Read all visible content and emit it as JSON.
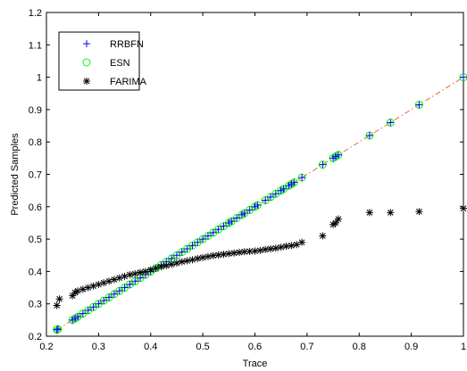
{
  "chart_data": {
    "type": "scatter",
    "title": "",
    "xlabel": "Trace",
    "ylabel": "Predicted Samples",
    "xlim": [
      0.2,
      1.0
    ],
    "ylim": [
      0.2,
      1.2
    ],
    "xticks": [
      "0.2",
      "0.3",
      "0.4",
      "0.5",
      "0.6",
      "0.7",
      "0.8",
      "0.9",
      "1"
    ],
    "yticks": [
      "0.2",
      "0.3",
      "0.4",
      "0.5",
      "0.6",
      "0.7",
      "0.8",
      "0.9",
      "1",
      "1.1",
      "1.2"
    ],
    "grid": false,
    "legend_position": "top-left",
    "reference_line": {
      "x": [
        0.22,
        1.0
      ],
      "y": [
        0.22,
        1.0
      ],
      "style": "dash-dot",
      "color": "#e8683a"
    },
    "series": [
      {
        "name": "RRBFN",
        "marker": "plus",
        "color": "#0000ff",
        "x": [
          0.22,
          0.222,
          0.25,
          0.255,
          0.26,
          0.27,
          0.28,
          0.29,
          0.3,
          0.31,
          0.32,
          0.33,
          0.34,
          0.35,
          0.36,
          0.37,
          0.38,
          0.39,
          0.4,
          0.41,
          0.42,
          0.43,
          0.44,
          0.45,
          0.46,
          0.47,
          0.48,
          0.49,
          0.5,
          0.51,
          0.52,
          0.53,
          0.54,
          0.55,
          0.555,
          0.565,
          0.575,
          0.58,
          0.59,
          0.6,
          0.605,
          0.62,
          0.63,
          0.64,
          0.65,
          0.655,
          0.665,
          0.67,
          0.675,
          0.69,
          0.73,
          0.75,
          0.755,
          0.76,
          0.82,
          0.86,
          0.915,
          1.0
        ],
        "y": [
          0.22,
          0.222,
          0.25,
          0.255,
          0.26,
          0.27,
          0.28,
          0.29,
          0.3,
          0.31,
          0.32,
          0.33,
          0.34,
          0.35,
          0.36,
          0.37,
          0.38,
          0.39,
          0.4,
          0.41,
          0.42,
          0.43,
          0.44,
          0.45,
          0.46,
          0.47,
          0.48,
          0.49,
          0.5,
          0.51,
          0.52,
          0.53,
          0.54,
          0.55,
          0.555,
          0.565,
          0.575,
          0.58,
          0.59,
          0.6,
          0.605,
          0.62,
          0.63,
          0.64,
          0.65,
          0.655,
          0.665,
          0.67,
          0.675,
          0.69,
          0.73,
          0.75,
          0.755,
          0.76,
          0.82,
          0.86,
          0.915,
          1.0
        ]
      },
      {
        "name": "ESN",
        "marker": "circle",
        "color": "#00ff00",
        "x": [
          0.22,
          0.222,
          0.25,
          0.255,
          0.26,
          0.27,
          0.28,
          0.29,
          0.3,
          0.31,
          0.32,
          0.33,
          0.34,
          0.35,
          0.36,
          0.37,
          0.38,
          0.39,
          0.4,
          0.41,
          0.42,
          0.43,
          0.44,
          0.45,
          0.46,
          0.47,
          0.48,
          0.49,
          0.5,
          0.51,
          0.52,
          0.53,
          0.54,
          0.55,
          0.555,
          0.565,
          0.575,
          0.58,
          0.59,
          0.6,
          0.605,
          0.62,
          0.63,
          0.64,
          0.65,
          0.655,
          0.665,
          0.67,
          0.675,
          0.69,
          0.73,
          0.75,
          0.755,
          0.76,
          0.82,
          0.86,
          0.915,
          1.0
        ],
        "y": [
          0.22,
          0.222,
          0.25,
          0.255,
          0.26,
          0.27,
          0.28,
          0.29,
          0.3,
          0.31,
          0.32,
          0.33,
          0.34,
          0.35,
          0.36,
          0.37,
          0.38,
          0.39,
          0.4,
          0.41,
          0.42,
          0.43,
          0.44,
          0.45,
          0.46,
          0.47,
          0.48,
          0.49,
          0.5,
          0.51,
          0.52,
          0.53,
          0.54,
          0.55,
          0.555,
          0.565,
          0.575,
          0.58,
          0.59,
          0.6,
          0.605,
          0.62,
          0.63,
          0.64,
          0.65,
          0.655,
          0.665,
          0.67,
          0.675,
          0.69,
          0.73,
          0.75,
          0.755,
          0.76,
          0.82,
          0.86,
          0.915,
          1.0
        ]
      },
      {
        "name": "FARIMA",
        "marker": "star",
        "color": "#000000",
        "x": [
          0.22,
          0.225,
          0.25,
          0.255,
          0.26,
          0.27,
          0.28,
          0.29,
          0.3,
          0.31,
          0.32,
          0.33,
          0.34,
          0.35,
          0.36,
          0.37,
          0.38,
          0.39,
          0.4,
          0.41,
          0.42,
          0.43,
          0.44,
          0.45,
          0.46,
          0.47,
          0.48,
          0.49,
          0.5,
          0.51,
          0.52,
          0.53,
          0.54,
          0.55,
          0.56,
          0.57,
          0.58,
          0.59,
          0.6,
          0.61,
          0.62,
          0.63,
          0.64,
          0.65,
          0.66,
          0.67,
          0.68,
          0.69,
          0.73,
          0.75,
          0.755,
          0.76,
          0.82,
          0.86,
          0.915,
          1.0
        ],
        "y": [
          0.295,
          0.315,
          0.325,
          0.335,
          0.34,
          0.345,
          0.35,
          0.355,
          0.36,
          0.365,
          0.37,
          0.375,
          0.38,
          0.385,
          0.39,
          0.393,
          0.397,
          0.4,
          0.405,
          0.41,
          0.415,
          0.418,
          0.422,
          0.426,
          0.43,
          0.433,
          0.436,
          0.44,
          0.443,
          0.446,
          0.449,
          0.451,
          0.453,
          0.455,
          0.457,
          0.459,
          0.461,
          0.462,
          0.463,
          0.465,
          0.468,
          0.47,
          0.472,
          0.475,
          0.478,
          0.48,
          0.483,
          0.49,
          0.51,
          0.545,
          0.55,
          0.562,
          0.582,
          0.582,
          0.585,
          0.595
        ]
      }
    ]
  }
}
